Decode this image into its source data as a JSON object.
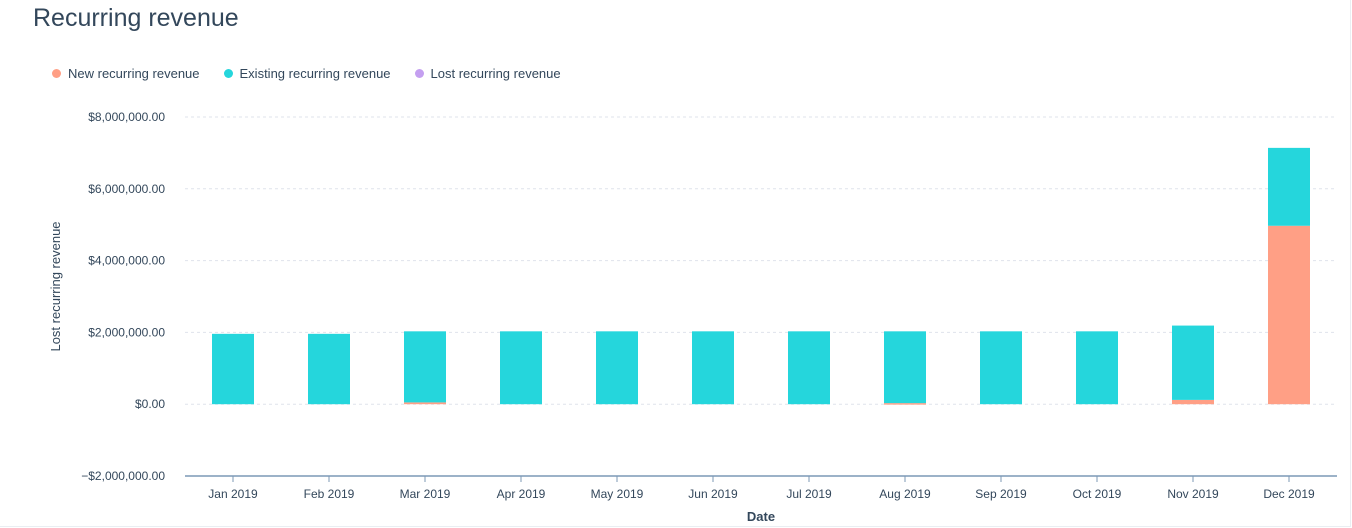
{
  "chart_data": {
    "type": "bar",
    "stacked": true,
    "title": "Recurring revenue",
    "xlabel": "Date",
    "ylabel": "Lost recurring revenue",
    "ylim": [
      -2000000,
      8000000
    ],
    "yticks": [
      -2000000,
      0,
      2000000,
      4000000,
      6000000,
      8000000
    ],
    "ytick_labels": [
      "−$2,000,000.00",
      "$0.00",
      "$2,000,000.00",
      "$4,000,000.00",
      "$6,000,000.00",
      "$8,000,000.00"
    ],
    "grid": true,
    "legend_position": "top-left",
    "categories": [
      "Jan 2019",
      "Feb 2019",
      "Mar 2019",
      "Apr 2019",
      "May 2019",
      "Jun 2019",
      "Jul 2019",
      "Aug 2019",
      "Sep 2019",
      "Oct 2019",
      "Nov 2019",
      "Dec 2019"
    ],
    "series": [
      {
        "name": "New recurring revenue",
        "color": "#ff9f85",
        "values": [
          0,
          0,
          50000,
          0,
          0,
          0,
          0,
          30000,
          0,
          0,
          120000,
          4970000
        ]
      },
      {
        "name": "Existing recurring revenue",
        "color": "#25d6dc",
        "values": [
          1960000,
          1960000,
          1980000,
          2030000,
          2030000,
          2030000,
          2030000,
          2000000,
          2030000,
          2030000,
          2070000,
          2170000
        ]
      },
      {
        "name": "Lost recurring revenue",
        "color": "#c49ff0",
        "values": [
          0,
          0,
          0,
          0,
          0,
          0,
          0,
          0,
          0,
          0,
          0,
          0
        ]
      }
    ]
  }
}
